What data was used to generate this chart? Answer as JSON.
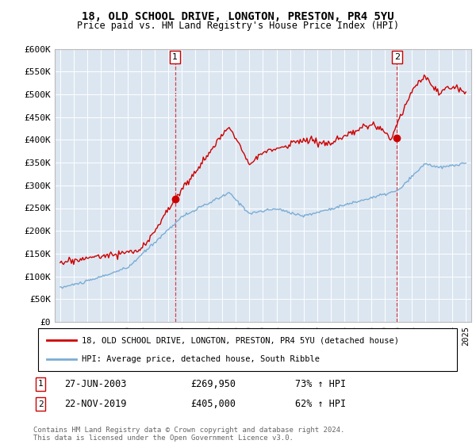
{
  "title1": "18, OLD SCHOOL DRIVE, LONGTON, PRESTON, PR4 5YU",
  "title2": "Price paid vs. HM Land Registry's House Price Index (HPI)",
  "legend_label_red": "18, OLD SCHOOL DRIVE, LONGTON, PRESTON, PR4 5YU (detached house)",
  "legend_label_blue": "HPI: Average price, detached house, South Ribble",
  "transaction1_date": "27-JUN-2003",
  "transaction1_price": "£269,950",
  "transaction1_hpi": "73% ↑ HPI",
  "transaction2_date": "22-NOV-2019",
  "transaction2_price": "£405,000",
  "transaction2_hpi": "62% ↑ HPI",
  "footer": "Contains HM Land Registry data © Crown copyright and database right 2024.\nThis data is licensed under the Open Government Licence v3.0.",
  "red_color": "#cc0000",
  "blue_color": "#7aadd4",
  "plot_bg": "#dce6f1",
  "ylim": [
    0,
    600000
  ],
  "yticks": [
    0,
    50000,
    100000,
    150000,
    200000,
    250000,
    300000,
    350000,
    400000,
    450000,
    500000,
    550000,
    600000
  ],
  "transaction1_x": 2003.49,
  "transaction1_y": 269950,
  "transaction2_x": 2019.9,
  "transaction2_y": 405000,
  "xlim_min": 1994.6,
  "xlim_max": 2025.4
}
